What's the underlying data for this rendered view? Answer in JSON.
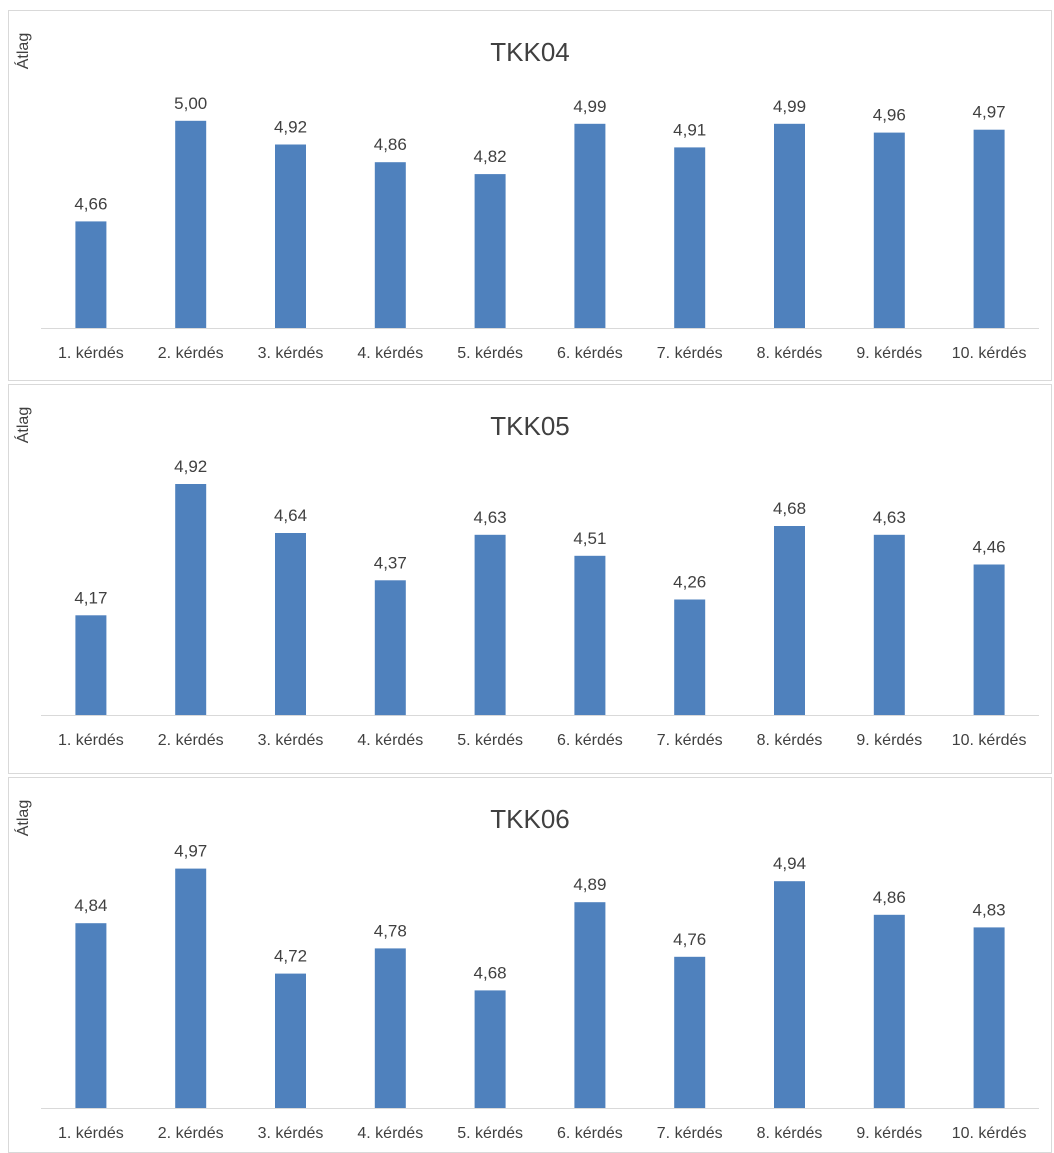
{
  "chart_data": [
    {
      "type": "bar",
      "title": "TKK04",
      "ylabel": "Átlag",
      "xlabel": "",
      "categories": [
        "1. kérdés",
        "2. kérdés",
        "3. kérdés",
        "4. kérdés",
        "5. kérdés",
        "6. kérdés",
        "7. kérdés",
        "8. kérdés",
        "9. kérdés",
        "10. kérdés"
      ],
      "values": [
        4.66,
        5.0,
        4.92,
        4.86,
        4.82,
        4.99,
        4.91,
        4.99,
        4.96,
        4.97
      ],
      "value_labels": [
        "4,66",
        "5,00",
        "4,92",
        "4,86",
        "4,82",
        "4,99",
        "4,91",
        "4,99",
        "4,96",
        "4,97"
      ],
      "ylim": [
        4.3,
        5.05
      ],
      "color": "#4f81bd",
      "grid": false,
      "legend": "none"
    },
    {
      "type": "bar",
      "title": "TKK05",
      "ylabel": "Átlag",
      "xlabel": "",
      "categories": [
        "1. kérdés",
        "2. kérdés",
        "3. kérdés",
        "4. kérdés",
        "5. kérdés",
        "6. kérdés",
        "7. kérdés",
        "8. kérdés",
        "9. kérdés",
        "10. kérdés"
      ],
      "values": [
        4.17,
        4.92,
        4.64,
        4.37,
        4.63,
        4.51,
        4.26,
        4.68,
        4.63,
        4.46
      ],
      "value_labels": [
        "4,17",
        "4,92",
        "4,64",
        "4,37",
        "4,63",
        "4,51",
        "4,26",
        "4,68",
        "4,63",
        "4,46"
      ],
      "ylim": [
        3.6,
        5.0
      ],
      "color": "#4f81bd",
      "grid": false,
      "legend": "none"
    },
    {
      "type": "bar",
      "title": "TKK06",
      "ylabel": "Átlag",
      "xlabel": "",
      "categories": [
        "1. kérdés",
        "2. kérdés",
        "3. kérdés",
        "4. kérdés",
        "5. kérdés",
        "6. kérdés",
        "7. kérdés",
        "8. kérdés",
        "9. kérdés",
        "10. kérdés"
      ],
      "values": [
        4.84,
        4.97,
        4.72,
        4.78,
        4.68,
        4.89,
        4.76,
        4.94,
        4.86,
        4.83
      ],
      "value_labels": [
        "4,84",
        "4,97",
        "4,72",
        "4,78",
        "4,68",
        "4,89",
        "4,76",
        "4,94",
        "4,86",
        "4,83"
      ],
      "ylim": [
        4.4,
        5.0
      ],
      "color": "#4f81bd",
      "grid": false,
      "legend": "none"
    }
  ]
}
